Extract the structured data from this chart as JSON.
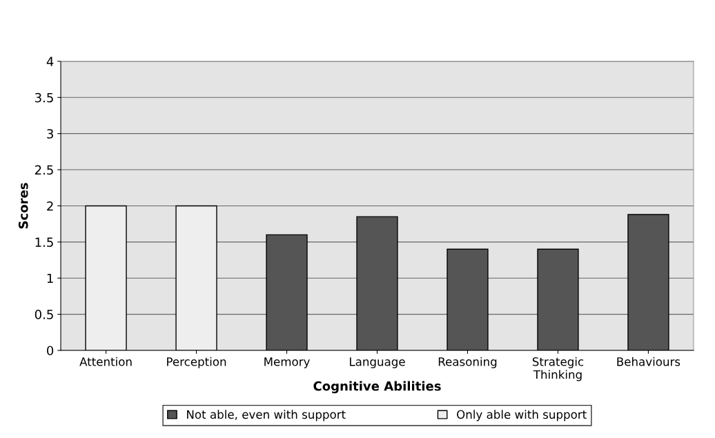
{
  "chart_data": {
    "type": "bar",
    "xlabel": "Cognitive Abilities",
    "ylabel": "Scores",
    "categories": [
      "Attention",
      "Perception",
      "Memory",
      "Language",
      "Reasoning",
      "Strategic\nThinking",
      "Behaviours"
    ],
    "series": [
      {
        "name": "Not able, even with support",
        "color": "#555555",
        "values": [
          null,
          null,
          1.6,
          1.85,
          1.4,
          1.4,
          1.88
        ]
      },
      {
        "name": "Only able with support",
        "color": "#eeeeee",
        "values": [
          2,
          2,
          null,
          null,
          null,
          null,
          null
        ]
      }
    ],
    "stacked": true,
    "ylim": [
      0,
      4
    ],
    "yticks": [
      0,
      0.5,
      1,
      1.5,
      2,
      2.5,
      3,
      3.5,
      4
    ],
    "grid": "y",
    "legend": "bottom"
  }
}
